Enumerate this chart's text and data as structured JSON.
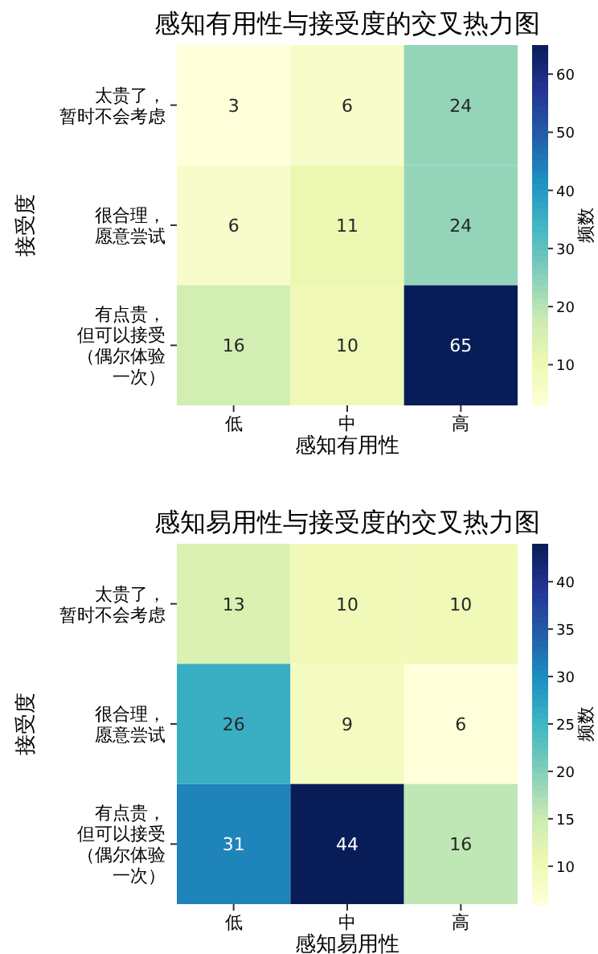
{
  "chart_data": [
    {
      "type": "heatmap",
      "title": "感知有用性与接受度的交叉热力图",
      "xlabel": "感知有用性",
      "ylabel": "接受度",
      "clabel": "频数",
      "categories": [
        "低",
        "中",
        "高"
      ],
      "y_categories": [
        "太贵了，暂时不会考虑",
        "很合理，愿意尝试",
        "有点贵，但可以接受（偶尔体验一次）"
      ],
      "cells": [
        [
          3,
          6,
          24
        ],
        [
          6,
          11,
          24
        ],
        [
          16,
          10,
          65
        ]
      ],
      "clim": [
        3,
        65
      ],
      "cticks": [
        10,
        20,
        30,
        40,
        50,
        60
      ],
      "data_labels": true
    },
    {
      "type": "heatmap",
      "title": "感知易用性与接受度的交叉热力图",
      "xlabel": "感知易用性",
      "ylabel": "接受度",
      "clabel": "频数",
      "categories": [
        "低",
        "中",
        "高"
      ],
      "y_categories": [
        "太贵了，暂时不会考虑",
        "很合理，愿意尝试",
        "有点贵，但可以接受（偶尔体验一次）"
      ],
      "cells": [
        [
          13,
          10,
          10
        ],
        [
          26,
          9,
          6
        ],
        [
          31,
          44,
          16
        ]
      ],
      "clim": [
        6,
        44
      ],
      "cticks": [
        10,
        15,
        20,
        25,
        30,
        35,
        40
      ],
      "data_labels": true
    }
  ]
}
